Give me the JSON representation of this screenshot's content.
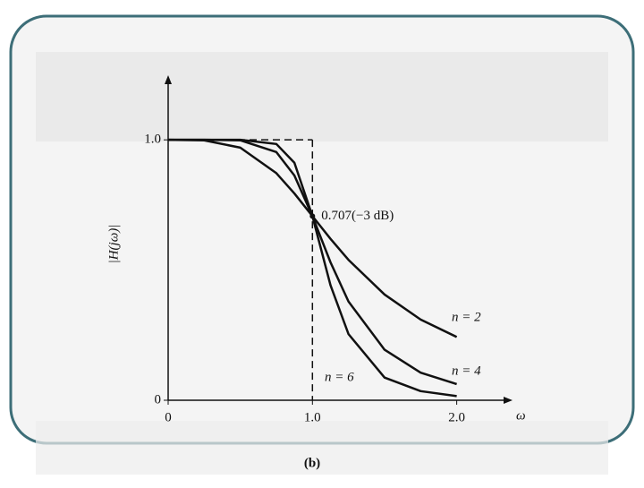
{
  "chart_data": {
    "type": "line",
    "caption": "(b)",
    "x_label": "ω",
    "y_label": "|H(jω)|",
    "annotation": "0.707(−3 dB)",
    "annotation_point": [
      1,
      0.707
    ],
    "x": [
      0,
      0.25,
      0.5,
      0.75,
      0.875,
      1,
      1.125,
      1.25,
      1.5,
      1.75,
      2
    ],
    "series": [
      {
        "name": "n = 2",
        "color": "#111111",
        "values": [
          1,
          0.998,
          0.97,
          0.872,
          0.794,
          0.707,
          0.62,
          0.539,
          0.406,
          0.31,
          0.243
        ]
      },
      {
        "name": "n = 4",
        "color": "#111111",
        "values": [
          1,
          1,
          0.998,
          0.953,
          0.863,
          0.707,
          0.53,
          0.379,
          0.194,
          0.106,
          0.062
        ]
      },
      {
        "name": "n = 6",
        "color": "#111111",
        "values": [
          1,
          1,
          1,
          0.984,
          0.912,
          0.707,
          0.442,
          0.254,
          0.087,
          0.035,
          0.016
        ]
      }
    ],
    "xlim": [
      0,
      2.3
    ],
    "ylim": [
      0,
      1.2
    ],
    "xticks": [
      0,
      {
        "value": 1,
        "label": "1.0"
      },
      {
        "value": 2,
        "label": "2.0"
      }
    ],
    "yticks": [
      0,
      {
        "value": 1,
        "label": "1.0"
      }
    ]
  }
}
